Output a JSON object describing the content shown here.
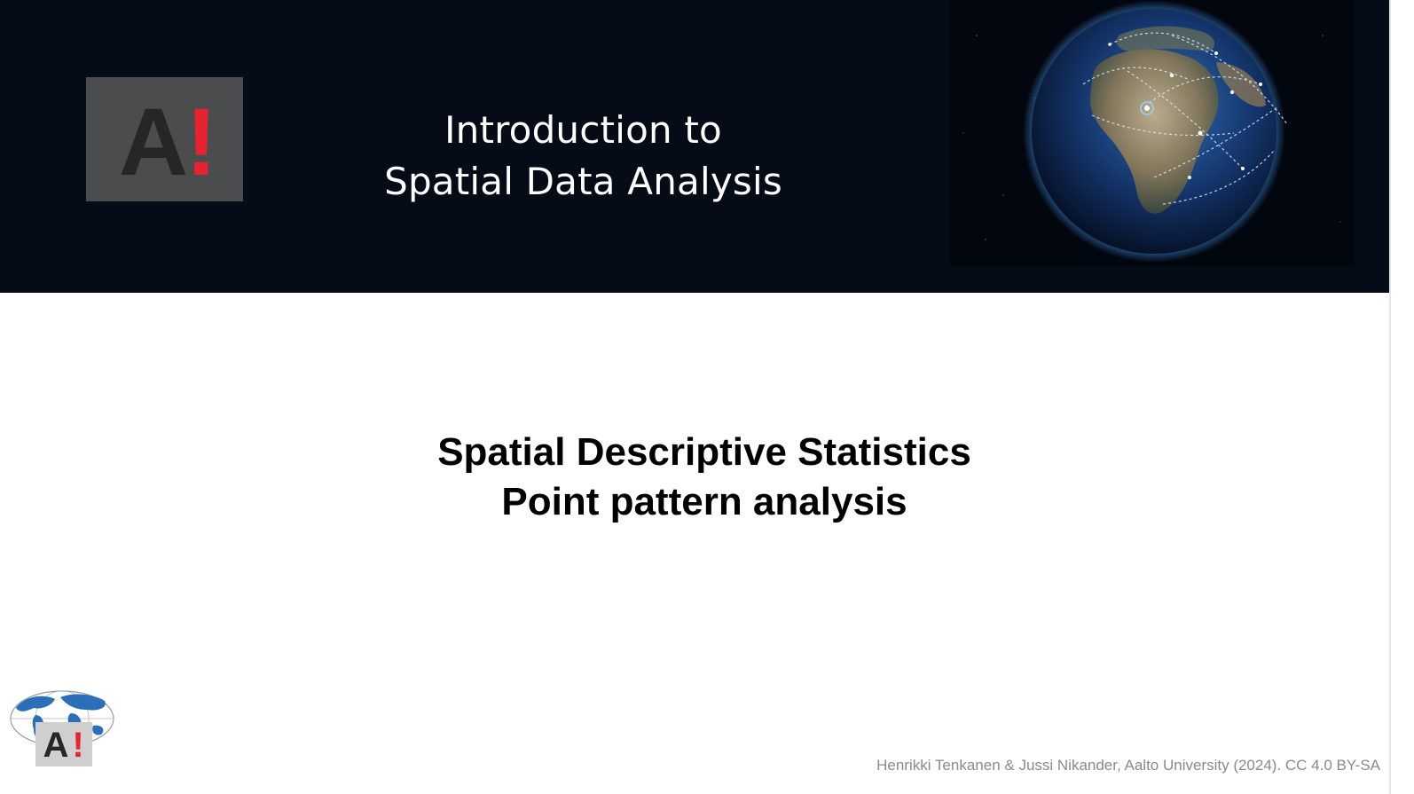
{
  "banner": {
    "background_color": "#050c18",
    "logo": {
      "text_a": "A",
      "text_bang": "!",
      "box_color": "#4a4c4e",
      "letter_color": "#262626",
      "accent_color": "#e8222e"
    },
    "title_line1": "Introduction to",
    "title_line2": "Spatial Data Analysis",
    "image": "earth-network-globe"
  },
  "main": {
    "title_line1": "Spatial Descriptive Statistics",
    "title_line2": "Point pattern analysis"
  },
  "footer": {
    "corner_logo": {
      "text_a": "A",
      "text_bang": "!",
      "icon": "world-map-globe-icon"
    },
    "credit": "Henrikki Tenkanen  & Jussi Nikander, Aalto University (2024). CC 4.0 BY-SA"
  }
}
